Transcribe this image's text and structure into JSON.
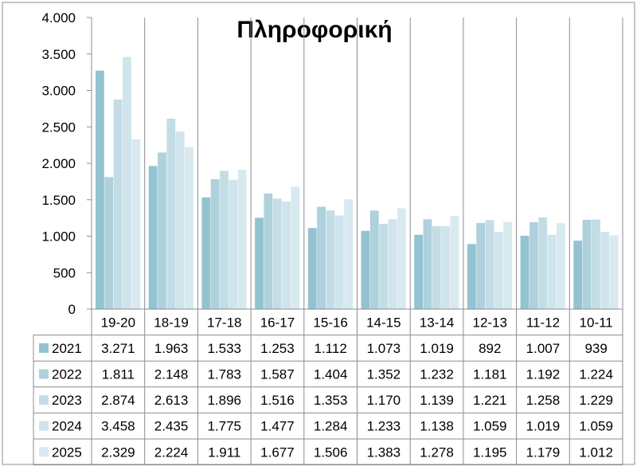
{
  "chart_data": {
    "type": "bar",
    "title": "Πληροφορική",
    "xlabel": "",
    "ylabel": "",
    "ylim": [
      0,
      4000
    ],
    "yticks": [
      0,
      500,
      1000,
      1500,
      2000,
      2500,
      3000,
      3500,
      4000
    ],
    "ytick_labels": [
      "0",
      "500",
      "1.000",
      "1.500",
      "2.000",
      "2.500",
      "3.000",
      "3.500",
      "4.000"
    ],
    "grid": "vertical category separators",
    "legend": "data-table",
    "categories": [
      "19-20",
      "18-19",
      "17-18",
      "16-17",
      "15-16",
      "14-15",
      "13-14",
      "12-13",
      "11-12",
      "10-11"
    ],
    "series": [
      {
        "name": "2021",
        "color": "#93c3d0",
        "values": [
          3271,
          1963,
          1533,
          1253,
          1112,
          1073,
          1019,
          892,
          1007,
          939
        ],
        "labels": [
          "3.271",
          "1.963",
          "1.533",
          "1.253",
          "1.112",
          "1.073",
          "1.019",
          "892",
          "1.007",
          "939"
        ]
      },
      {
        "name": "2022",
        "color": "#aed1dc",
        "values": [
          1811,
          2148,
          1783,
          1587,
          1404,
          1352,
          1232,
          1181,
          1192,
          1224
        ],
        "labels": [
          "1.811",
          "2.148",
          "1.783",
          "1.587",
          "1.404",
          "1.352",
          "1.232",
          "1.181",
          "1.192",
          "1.224"
        ]
      },
      {
        "name": "2023",
        "color": "#c3dde6",
        "values": [
          2874,
          2613,
          1896,
          1516,
          1353,
          1170,
          1139,
          1221,
          1258,
          1229
        ],
        "labels": [
          "2.874",
          "2.613",
          "1.896",
          "1.516",
          "1.353",
          "1.170",
          "1.139",
          "1.221",
          "1.258",
          "1.229"
        ]
      },
      {
        "name": "2024",
        "color": "#cfe4ec",
        "values": [
          3458,
          2435,
          1775,
          1477,
          1284,
          1233,
          1138,
          1059,
          1019,
          1059
        ],
        "labels": [
          "3.458",
          "2.435",
          "1.775",
          "1.477",
          "1.284",
          "1.233",
          "1.138",
          "1.059",
          "1.019",
          "1.059"
        ]
      },
      {
        "name": "2025",
        "color": "#d8e9f0",
        "values": [
          2329,
          2224,
          1911,
          1677,
          1506,
          1383,
          1278,
          1195,
          1179,
          1012
        ],
        "labels": [
          "2.329",
          "2.224",
          "1.911",
          "1.677",
          "1.506",
          "1.383",
          "1.278",
          "1.195",
          "1.179",
          "1.012"
        ]
      }
    ]
  }
}
